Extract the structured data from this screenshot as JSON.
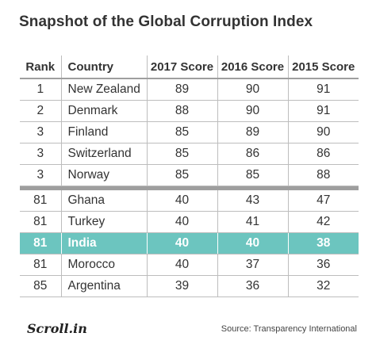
{
  "title": "Snapshot of the Global Corruption Index",
  "headers": [
    "Rank",
    "Country",
    "2017 Score",
    "2016 Score",
    "2015 Score"
  ],
  "top_rows": [
    [
      "1",
      "New Zealand",
      "89",
      "90",
      "91"
    ],
    [
      "2",
      "Denmark",
      "88",
      "90",
      "91"
    ],
    [
      "3",
      "Finland",
      "85",
      "89",
      "90"
    ],
    [
      "3",
      "Switzerland",
      "85",
      "86",
      "86"
    ],
    [
      "3",
      "Norway",
      "85",
      "85",
      "88"
    ]
  ],
  "bottom_rows": [
    [
      "81",
      "Ghana",
      "40",
      "43",
      "47"
    ],
    [
      "81",
      "Turkey",
      "40",
      "41",
      "42"
    ],
    [
      "81",
      "India",
      "40",
      "40",
      "38"
    ],
    [
      "81",
      "Morocco",
      "40",
      "37",
      "36"
    ],
    [
      "85",
      "Argentina",
      "39",
      "36",
      "32"
    ]
  ],
  "highlight_country": "India",
  "highlight_color": "#6cc5bf",
  "logo_text": "Scroll.in",
  "source": "Source: Transparency International"
}
